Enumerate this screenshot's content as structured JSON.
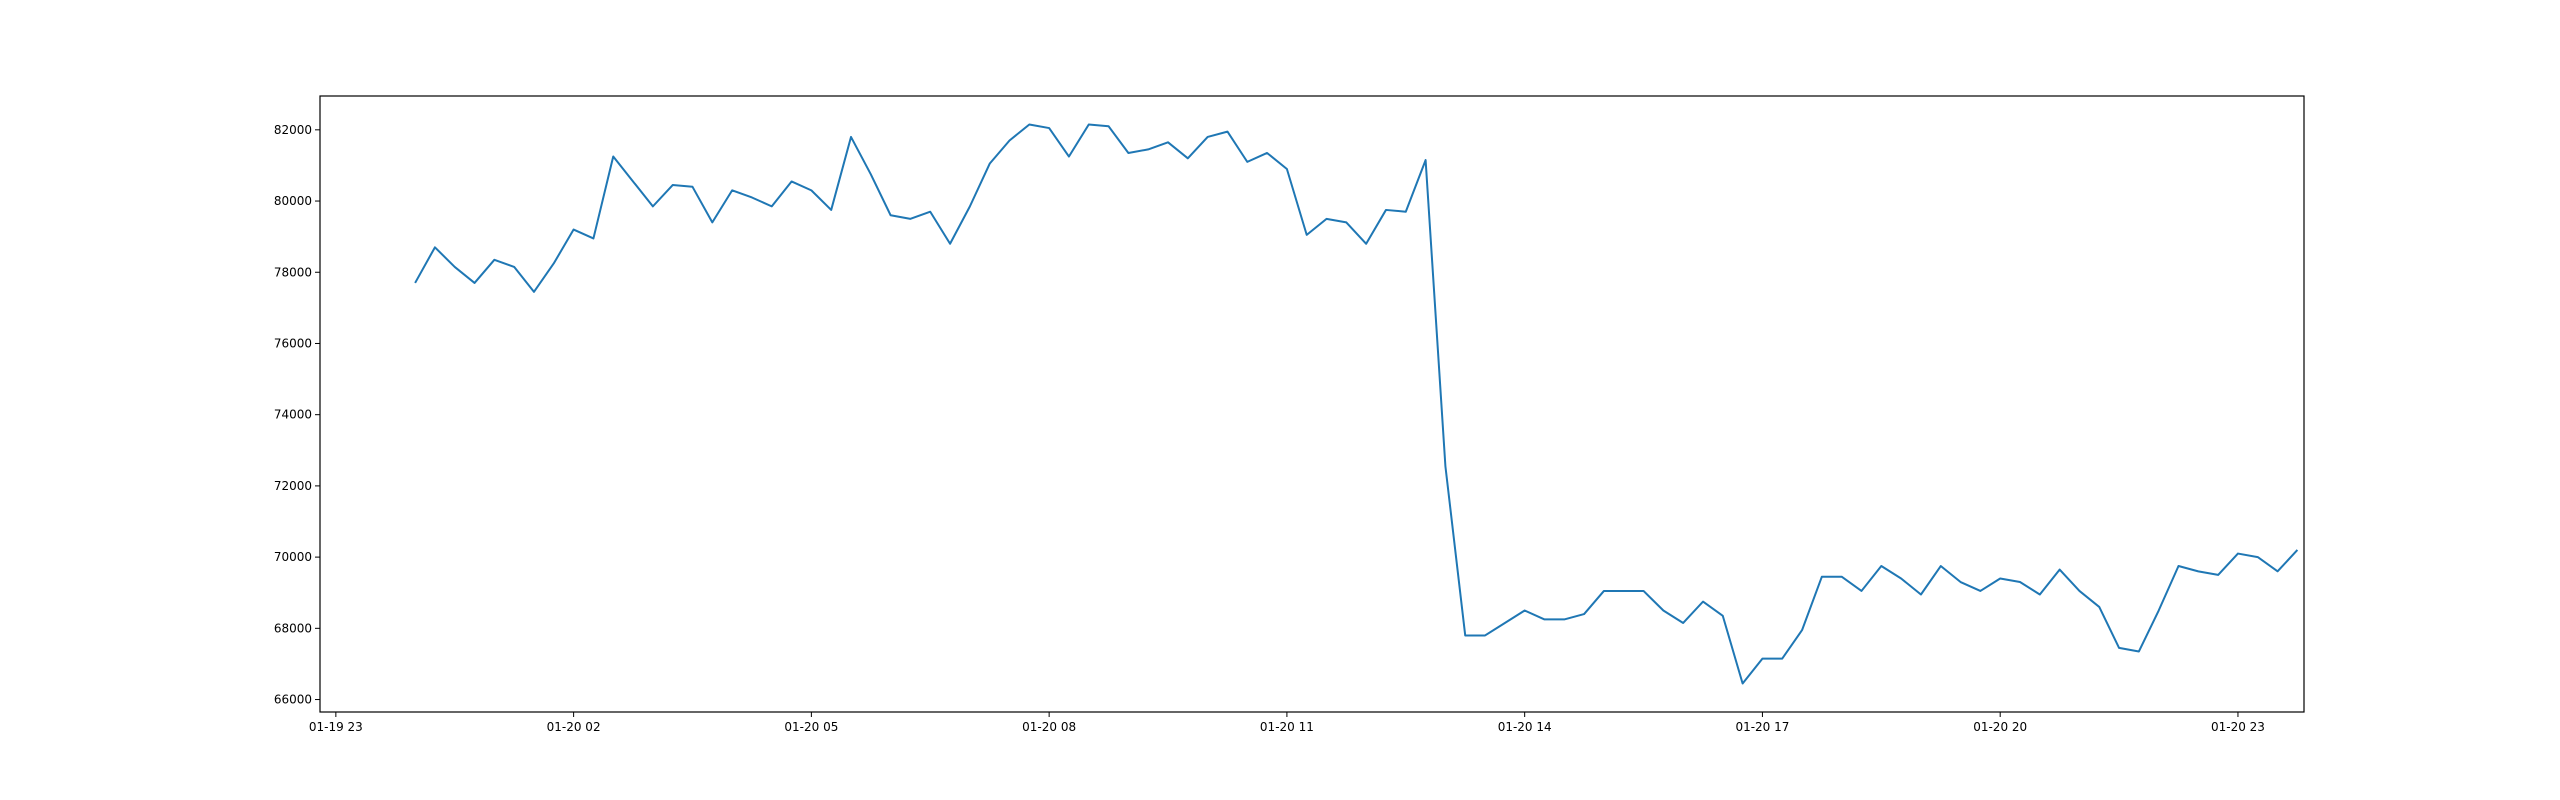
{
  "chart_data": {
    "type": "line",
    "title": "",
    "xlabel": "",
    "ylabel": "",
    "x_start": "01-20 00:00",
    "x_step_minutes": 15,
    "xlim": [
      "01-19 22:48",
      "01-20 23:50"
    ],
    "ylim": [
      65650,
      82950
    ],
    "x_tick_labels": [
      "01-19 23",
      "01-20 02",
      "01-20 05",
      "01-20 08",
      "01-20 11",
      "01-20 14",
      "01-20 17",
      "01-20 20",
      "01-20 23"
    ],
    "y_tick_labels": [
      "66000",
      "68000",
      "70000",
      "72000",
      "74000",
      "76000",
      "78000",
      "80000",
      "82000"
    ],
    "grid": false,
    "legend": "none",
    "color": "#1f77b4",
    "series": [
      {
        "values": [
          77700,
          78700,
          78150,
          77700,
          78350,
          78150,
          77450,
          78250,
          79200,
          78950,
          81250,
          80550,
          79850,
          80450,
          80400,
          79400,
          80300,
          80100,
          79850,
          80550,
          80300,
          79750,
          81800,
          80750,
          79600,
          79500,
          79700,
          78800,
          79850,
          81050,
          81700,
          82150,
          82050,
          81250,
          82150,
          82100,
          81350,
          81450,
          81650,
          81200,
          81800,
          81950,
          81100,
          81350,
          80900,
          79050,
          79500,
          79400,
          78800,
          79750,
          79700,
          81150,
          72550,
          67800,
          67800,
          68150,
          68500,
          68250,
          68250,
          68400,
          69050,
          69050,
          69050,
          68500,
          68150,
          68750,
          68350,
          66450,
          67150,
          67150,
          67950,
          69450,
          69450,
          69050,
          69750,
          69400,
          68950,
          69750,
          69300,
          69050,
          69400,
          69300,
          68950,
          69650,
          69050,
          68600,
          67450,
          67350,
          68500,
          69750,
          69600,
          69500,
          70100,
          70000,
          69600,
          70200
        ]
      }
    ]
  }
}
